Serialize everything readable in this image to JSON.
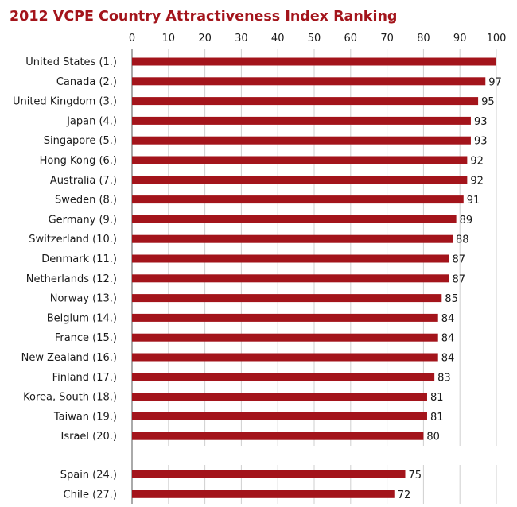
{
  "chart_data": {
    "type": "bar",
    "orientation": "horizontal",
    "title": "2012 VCPE Country Attractiveness Index Ranking",
    "xlabel": "",
    "ylabel": "",
    "xlim": [
      0,
      100
    ],
    "ticks": [
      0,
      10,
      20,
      30,
      40,
      50,
      60,
      70,
      80,
      90,
      100
    ],
    "tick_position": "top",
    "grid": true,
    "bar_color": "#a3141b",
    "groups": [
      {
        "categories": [
          "United States (1.)",
          "Canada (2.)",
          "United Kingdom (3.)",
          "Japan (4.)",
          "Singapore (5.)",
          "Hong Kong (6.)",
          "Australia (7.)",
          "Sweden (8.)",
          "Germany (9.)",
          "Switzerland (10.)",
          "Denmark (11.)",
          "Netherlands (12.)",
          "Norway (13.)",
          "Belgium (14.)",
          "France (15.)",
          "New Zealand (16.)",
          "Finland (17.)",
          "Korea, South (18.)",
          "Taiwan (19.)",
          "Israel (20.)"
        ],
        "values": [
          100,
          97,
          95,
          93,
          93,
          92,
          92,
          91,
          89,
          88,
          87,
          87,
          85,
          84,
          84,
          84,
          83,
          81,
          81,
          80
        ],
        "labels": [
          "",
          "97",
          "95",
          "93",
          "93",
          "92",
          "92",
          "91",
          "89",
          "88",
          "87",
          "87",
          "85",
          "84",
          "84",
          "84",
          "83",
          "81",
          "81",
          "80"
        ]
      },
      {
        "categories": [
          "Spain (24.)",
          "Chile (27.)"
        ],
        "values": [
          75,
          72
        ],
        "labels": [
          "75",
          "72"
        ]
      }
    ]
  }
}
